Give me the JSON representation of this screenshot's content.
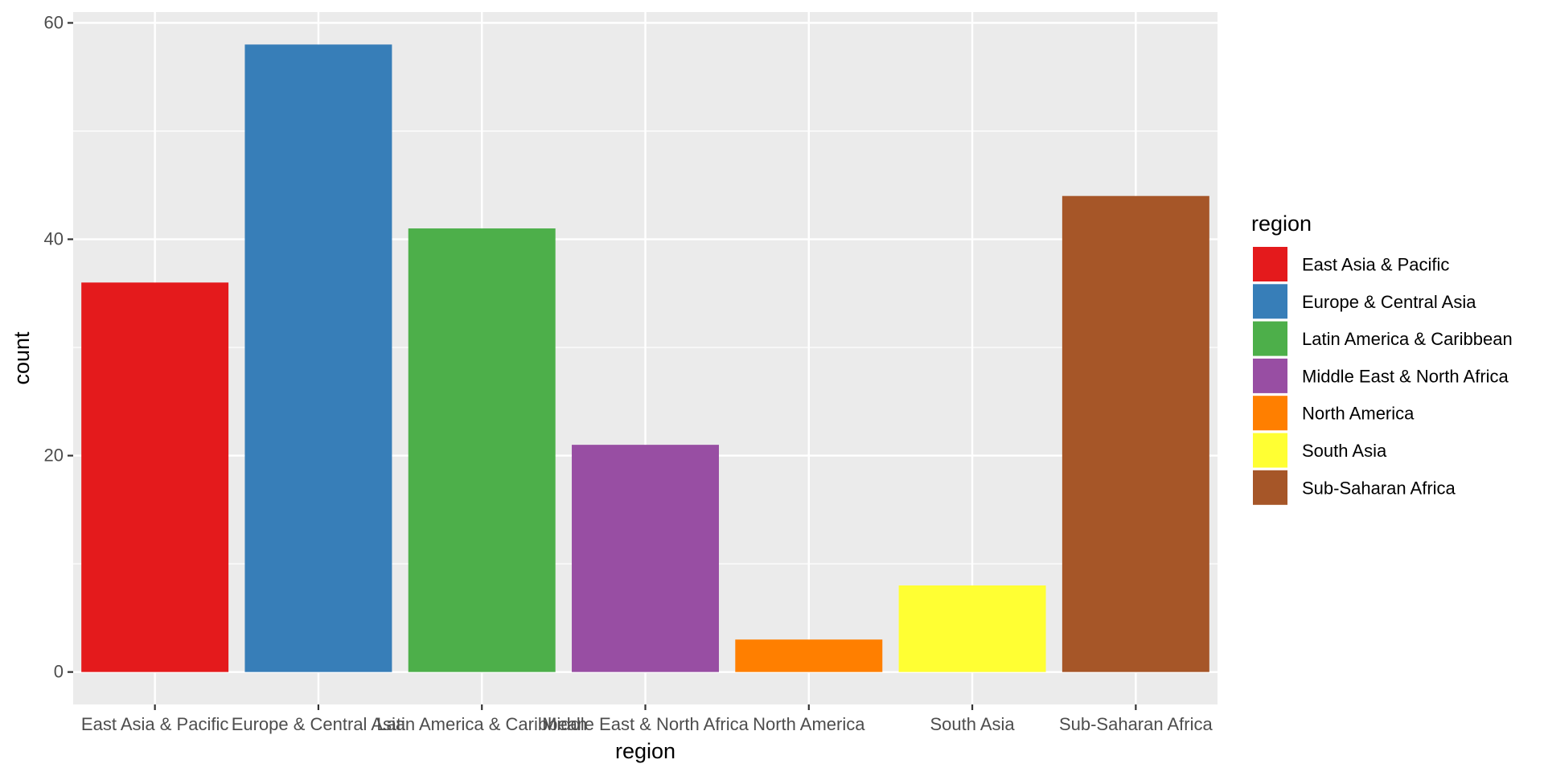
{
  "chart_data": {
    "type": "bar",
    "title": "",
    "xlabel": "region",
    "ylabel": "count",
    "ylim": [
      -3,
      61
    ],
    "y_ticks": [
      0,
      20,
      40,
      60
    ],
    "y_minor_ticks": [
      10,
      30,
      50
    ],
    "grid": true,
    "categories": [
      "East Asia & Pacific",
      "Europe & Central Asia",
      "Latin America & Caribbean",
      "Middle East & North Africa",
      "North America",
      "South Asia",
      "Sub-Saharan Africa"
    ],
    "values": [
      36,
      58,
      41,
      21,
      3,
      8,
      44
    ],
    "colors": [
      "#e41a1c",
      "#377eb8",
      "#4daf4a",
      "#984ea3",
      "#ff7f00",
      "#ffff33",
      "#a65628"
    ],
    "legend": {
      "title": "region",
      "position": "right",
      "entries": [
        "East Asia & Pacific",
        "Europe & Central Asia",
        "Latin America & Caribbean",
        "Middle East & North Africa",
        "North America",
        "South Asia",
        "Sub-Saharan Africa"
      ]
    },
    "panel_background": "#ebebeb",
    "grid_color": "#ffffff"
  }
}
